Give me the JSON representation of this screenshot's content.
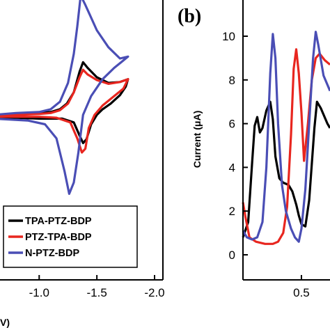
{
  "chart_data": [
    {
      "panel": "a",
      "type": "line",
      "xlabel_fragment": "V)",
      "x_ticks": [
        "-1.0",
        "-1.5",
        "-2.0"
      ],
      "x_tick_values": [
        -1.0,
        -1.5,
        -2.0
      ],
      "xlim": [
        -0.6,
        -2.0
      ],
      "ylim": [
        -1,
        1
      ],
      "legend_position": "bottom-right",
      "series": [
        {
          "name": "TPA-PTZ-BDP",
          "color": "#000000",
          "forward": [
            [
              -0.6,
              0.0
            ],
            [
              -0.8,
              0.01
            ],
            [
              -1.0,
              0.02
            ],
            [
              -1.1,
              0.03
            ],
            [
              -1.18,
              0.06
            ],
            [
              -1.24,
              0.12
            ],
            [
              -1.3,
              0.24
            ],
            [
              -1.35,
              0.46
            ],
            [
              -1.38,
              0.56
            ],
            [
              -1.42,
              0.5
            ],
            [
              -1.5,
              0.4
            ],
            [
              -1.6,
              0.34
            ],
            [
              -1.7,
              0.35
            ],
            [
              -1.77,
              0.38
            ]
          ],
          "reverse": [
            [
              -1.77,
              0.38
            ],
            [
              -1.75,
              0.3
            ],
            [
              -1.7,
              0.21
            ],
            [
              -1.62,
              0.12
            ],
            [
              -1.55,
              0.06
            ],
            [
              -1.5,
              0.0
            ],
            [
              -1.45,
              -0.1
            ],
            [
              -1.41,
              -0.26
            ],
            [
              -1.38,
              -0.3
            ],
            [
              -1.35,
              -0.22
            ],
            [
              -1.3,
              -0.08
            ],
            [
              -1.2,
              -0.04
            ],
            [
              -1.0,
              -0.04
            ],
            [
              -0.8,
              -0.03
            ],
            [
              -0.6,
              -0.03
            ]
          ]
        },
        {
          "name": "PTZ-TPA-BDP",
          "color": "#e8261f",
          "forward": [
            [
              -0.6,
              0.0
            ],
            [
              -0.8,
              0.0
            ],
            [
              -1.0,
              0.01
            ],
            [
              -1.1,
              0.02
            ],
            [
              -1.18,
              0.05
            ],
            [
              -1.25,
              0.12
            ],
            [
              -1.3,
              0.24
            ],
            [
              -1.35,
              0.4
            ],
            [
              -1.38,
              0.48
            ],
            [
              -1.42,
              0.43
            ],
            [
              -1.5,
              0.37
            ],
            [
              -1.6,
              0.33
            ],
            [
              -1.7,
              0.35
            ],
            [
              -1.77,
              0.38
            ]
          ],
          "reverse": [
            [
              -1.77,
              0.38
            ],
            [
              -1.73,
              0.28
            ],
            [
              -1.65,
              0.2
            ],
            [
              -1.55,
              0.1
            ],
            [
              -1.48,
              0.0
            ],
            [
              -1.43,
              -0.14
            ],
            [
              -1.4,
              -0.36
            ],
            [
              -1.37,
              -0.4
            ],
            [
              -1.33,
              -0.25
            ],
            [
              -1.27,
              -0.08
            ],
            [
              -1.15,
              -0.03
            ],
            [
              -1.0,
              -0.02
            ],
            [
              -0.8,
              -0.02
            ],
            [
              -0.6,
              -0.02
            ]
          ]
        },
        {
          "name": "N-PTZ-BDP",
          "color": "#4a4eb5",
          "forward": [
            [
              -0.6,
              0.0
            ],
            [
              -0.8,
              0.02
            ],
            [
              -1.0,
              0.03
            ],
            [
              -1.1,
              0.06
            ],
            [
              -1.18,
              0.14
            ],
            [
              -1.25,
              0.34
            ],
            [
              -1.3,
              0.65
            ],
            [
              -1.33,
              0.94
            ],
            [
              -1.36,
              1.27
            ],
            [
              -1.4,
              1.17
            ],
            [
              -1.5,
              0.9
            ],
            [
              -1.6,
              0.72
            ],
            [
              -1.7,
              0.6
            ],
            [
              -1.77,
              0.62
            ]
          ],
          "reverse": [
            [
              -1.77,
              0.62
            ],
            [
              -1.72,
              0.57
            ],
            [
              -1.65,
              0.5
            ],
            [
              -1.55,
              0.38
            ],
            [
              -1.45,
              0.2
            ],
            [
              -1.38,
              0.0
            ],
            [
              -1.34,
              -0.4
            ],
            [
              -1.3,
              -0.72
            ],
            [
              -1.26,
              -0.84
            ],
            [
              -1.22,
              -0.6
            ],
            [
              -1.15,
              -0.25
            ],
            [
              -1.05,
              -0.1
            ],
            [
              -0.9,
              -0.06
            ],
            [
              -0.6,
              -0.04
            ]
          ]
        }
      ]
    },
    {
      "panel": "b",
      "label": "(b)",
      "type": "line",
      "ylabel": "Current (μA)",
      "y_ticks": [
        "0",
        "2",
        "4",
        "6",
        "8",
        "10"
      ],
      "y_tick_values": [
        0,
        2,
        4,
        6,
        8,
        10
      ],
      "ylim": [
        -1,
        11.5
      ],
      "x_ticks": [
        "0.5"
      ],
      "x_tick_values": [
        0.5
      ],
      "xlim": [
        0.05,
        0.72
      ],
      "series": [
        {
          "name": "TPA-PTZ-BDP",
          "color": "#000000",
          "points": [
            [
              0.05,
              0.8
            ],
            [
              0.09,
              1.5
            ],
            [
              0.12,
              4.2
            ],
            [
              0.14,
              5.9
            ],
            [
              0.16,
              6.3
            ],
            [
              0.18,
              5.6
            ],
            [
              0.2,
              5.8
            ],
            [
              0.23,
              6.6
            ],
            [
              0.26,
              7.0
            ],
            [
              0.28,
              6.2
            ],
            [
              0.3,
              4.5
            ],
            [
              0.33,
              3.5
            ],
            [
              0.36,
              3.3
            ],
            [
              0.4,
              3.2
            ],
            [
              0.43,
              2.9
            ],
            [
              0.46,
              2.3
            ],
            [
              0.48,
              1.8
            ],
            [
              0.5,
              1.4
            ],
            [
              0.53,
              1.3
            ],
            [
              0.56,
              2.5
            ],
            [
              0.6,
              5.8
            ],
            [
              0.62,
              7.0
            ],
            [
              0.65,
              6.7
            ],
            [
              0.7,
              6.0
            ],
            [
              0.72,
              5.8
            ]
          ]
        },
        {
          "name": "PTZ-TPA-BDP",
          "color": "#e8261f",
          "points": [
            [
              0.05,
              2.4
            ],
            [
              0.07,
              1.7
            ],
            [
              0.1,
              0.8
            ],
            [
              0.15,
              0.6
            ],
            [
              0.22,
              0.5
            ],
            [
              0.28,
              0.5
            ],
            [
              0.32,
              0.6
            ],
            [
              0.36,
              1.0
            ],
            [
              0.39,
              2.2
            ],
            [
              0.42,
              5.5
            ],
            [
              0.44,
              8.5
            ],
            [
              0.46,
              9.4
            ],
            [
              0.48,
              8.3
            ],
            [
              0.5,
              6.5
            ],
            [
              0.52,
              4.3
            ],
            [
              0.55,
              6.0
            ],
            [
              0.58,
              8.0
            ],
            [
              0.61,
              9.0
            ],
            [
              0.64,
              9.2
            ],
            [
              0.68,
              8.9
            ],
            [
              0.72,
              8.7
            ]
          ]
        },
        {
          "name": "N-PTZ-BDP",
          "color": "#4a4eb5",
          "points": [
            [
              0.05,
              1.1
            ],
            [
              0.08,
              0.8
            ],
            [
              0.12,
              0.7
            ],
            [
              0.16,
              0.8
            ],
            [
              0.2,
              1.5
            ],
            [
              0.23,
              4.0
            ],
            [
              0.26,
              8.3
            ],
            [
              0.28,
              10.1
            ],
            [
              0.3,
              9.0
            ],
            [
              0.32,
              6.0
            ],
            [
              0.35,
              3.2
            ],
            [
              0.38,
              2.0
            ],
            [
              0.42,
              1.2
            ],
            [
              0.45,
              0.8
            ],
            [
              0.48,
              0.6
            ],
            [
              0.5,
              1.2
            ],
            [
              0.53,
              3.0
            ],
            [
              0.56,
              6.0
            ],
            [
              0.59,
              9.0
            ],
            [
              0.61,
              10.2
            ],
            [
              0.63,
              9.6
            ],
            [
              0.67,
              8.2
            ],
            [
              0.72,
              7.5
            ]
          ]
        }
      ]
    }
  ]
}
